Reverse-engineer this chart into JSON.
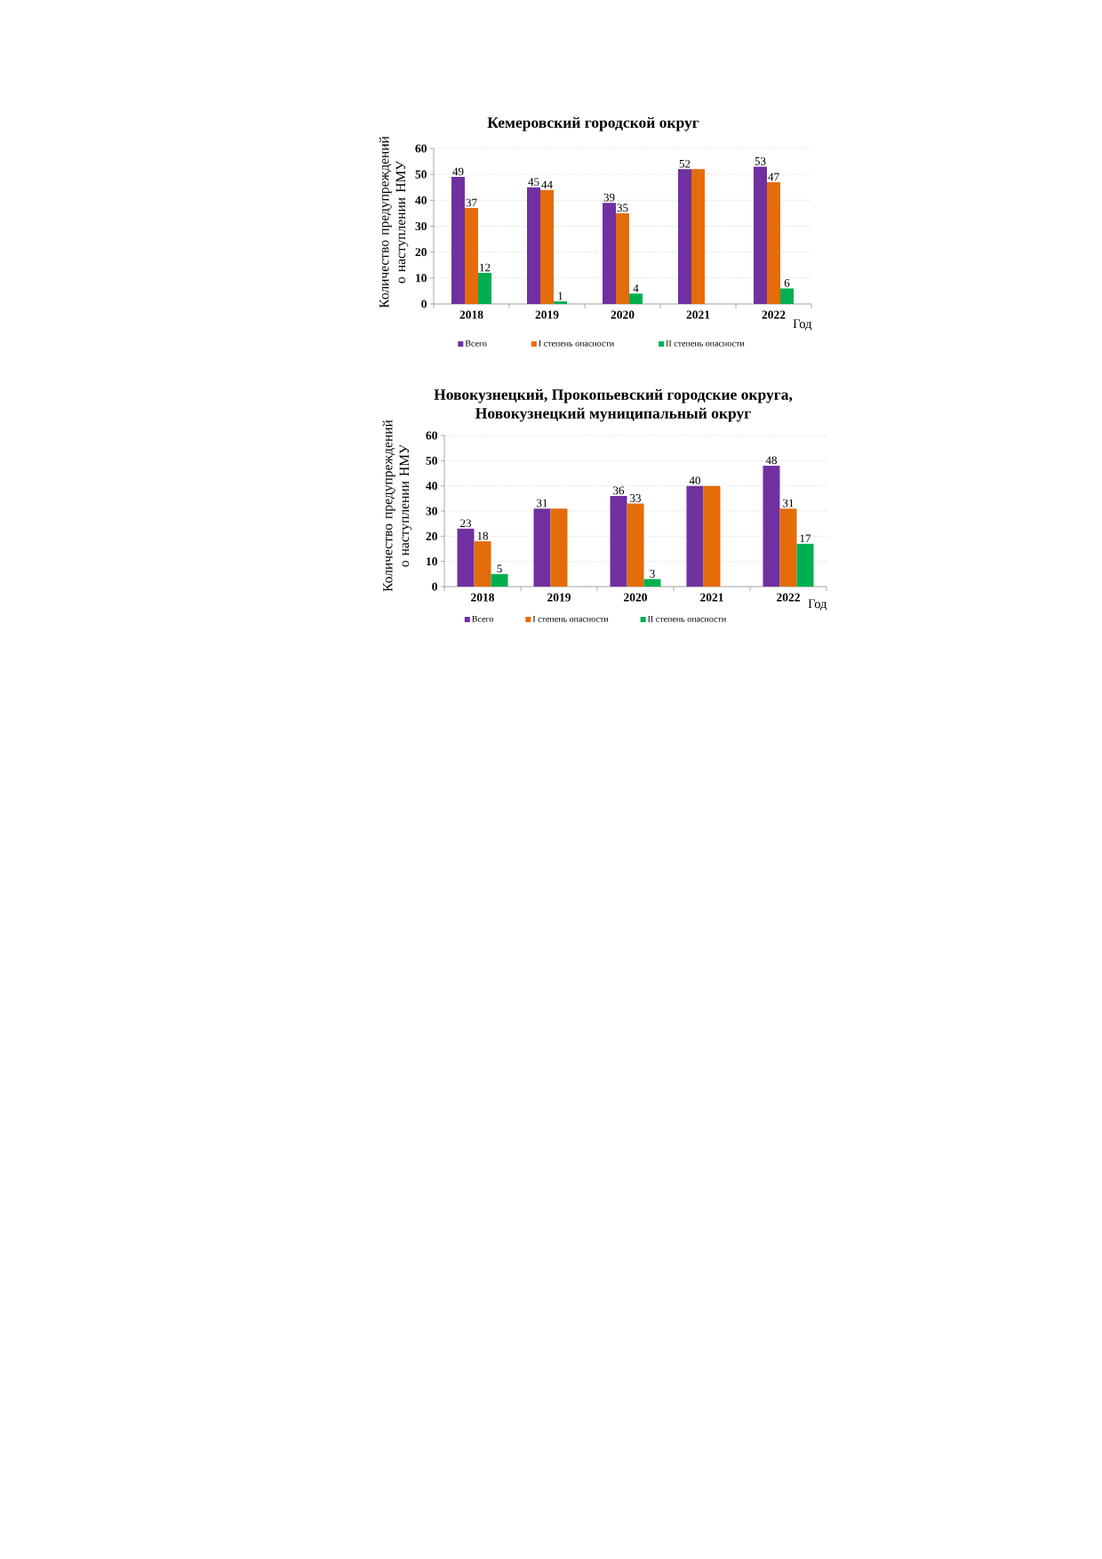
{
  "chart_data": [
    {
      "type": "bar",
      "title": "Кемеровский городской округ",
      "ylabel": "Количество предупреждений о наступлении НМУ",
      "xlabel": "Год",
      "categories": [
        "2018",
        "2019",
        "2020",
        "2021",
        "2022"
      ],
      "series": [
        {
          "name": "Всего",
          "color": "#7030a0",
          "values": [
            49,
            45,
            39,
            52,
            53
          ],
          "value_labels": [
            "49",
            "45",
            "39",
            "52",
            "53"
          ]
        },
        {
          "name": "I степень опасности",
          "color": "#e46c0a",
          "values": [
            37,
            44,
            35,
            52,
            47
          ],
          "value_labels": [
            "37",
            "44",
            "35",
            null,
            "47"
          ]
        },
        {
          "name": "II степень опасности",
          "color": "#00b050",
          "values": [
            12,
            1,
            4,
            null,
            6
          ],
          "value_labels": [
            "12",
            "1",
            "4",
            null,
            "6"
          ]
        }
      ],
      "ylim": [
        0,
        60
      ],
      "yticks": [
        0,
        10,
        20,
        30,
        40,
        50,
        60
      ],
      "grid": "y",
      "legend": "bottom"
    },
    {
      "type": "bar",
      "title": "Новокузнецкий, Прокопьевский городские округа, Новокузнецкий муниципальный округ",
      "ylabel": "Количество предупреждений о наступлении НМУ",
      "xlabel": "Год",
      "categories": [
        "2018",
        "2019",
        "2020",
        "2021",
        "2022"
      ],
      "series": [
        {
          "name": "Всего",
          "color": "#7030a0",
          "values": [
            23,
            31,
            36,
            40,
            48
          ],
          "value_labels": [
            "23",
            "31",
            "36",
            "40",
            "48"
          ]
        },
        {
          "name": "I степень опасности",
          "color": "#e46c0a",
          "values": [
            18,
            31,
            33,
            40,
            31
          ],
          "value_labels": [
            "18",
            null,
            "33",
            null,
            "31"
          ]
        },
        {
          "name": "II степень опасности",
          "color": "#00b050",
          "values": [
            5,
            null,
            3,
            null,
            17
          ],
          "value_labels": [
            "5",
            null,
            "3",
            null,
            "17"
          ]
        }
      ],
      "ylim": [
        0,
        60
      ],
      "yticks": [
        0,
        10,
        20,
        30,
        40,
        50,
        60
      ],
      "grid": "y",
      "legend": "bottom"
    }
  ]
}
